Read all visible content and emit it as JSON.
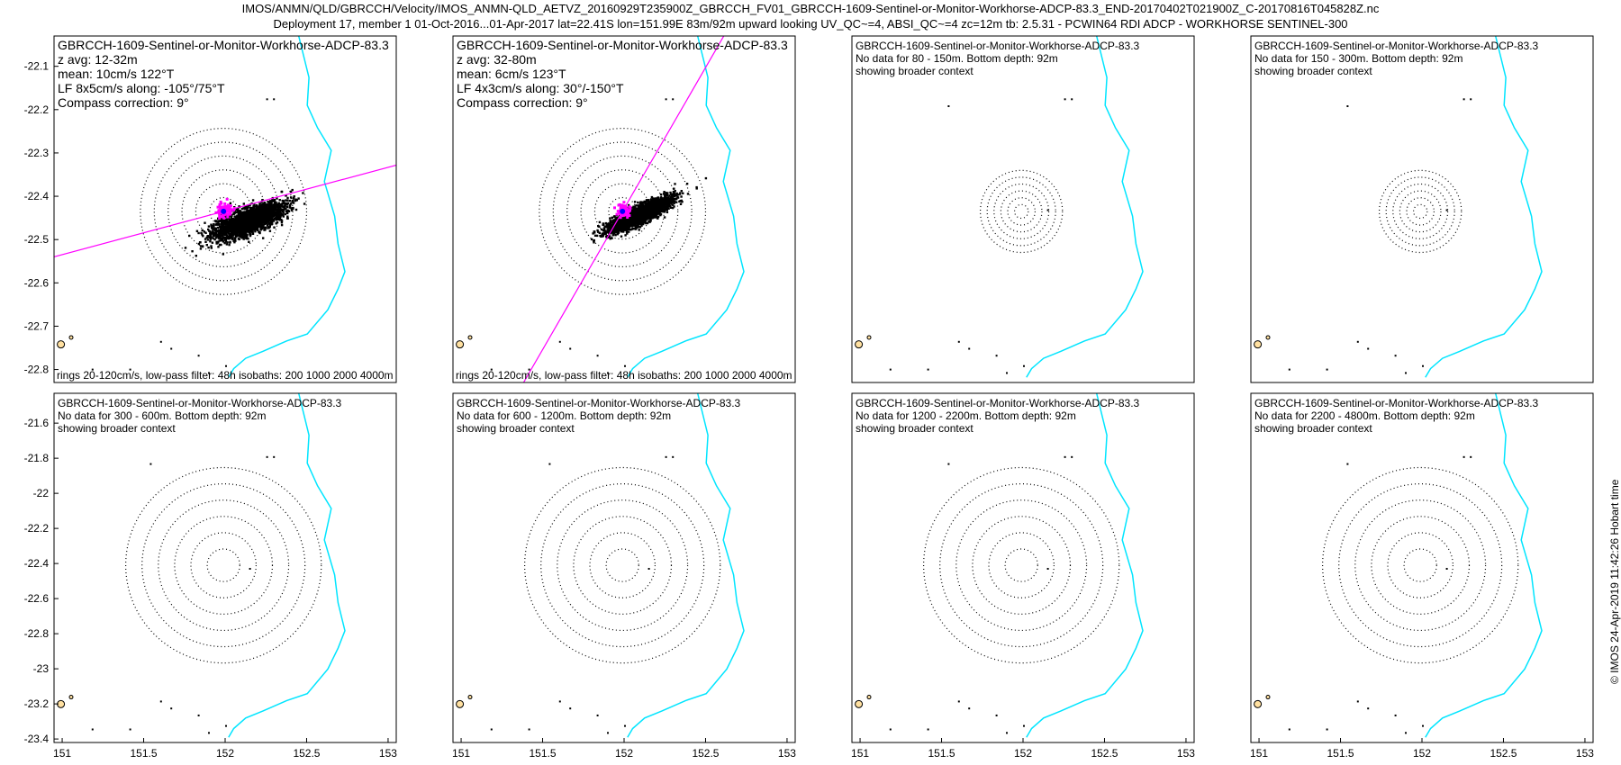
{
  "header": {
    "title_line1": "IMOS/ANMN/QLD/GBRCCH/Velocity/IMOS_ANMN-QLD_AETVZ_20160929T235900Z_GBRCCH_FV01_GBRCCH-1609-Sentinel-or-Monitor-Workhorse-ADCP-83.3_END-20170402T021900Z_C-20170816T045828Z.nc",
    "title_line2": "Deployment 17, member 1 01-Oct-2016...01-Apr-2017 lat=22.41S lon=151.99E 83m/92m upward looking UV_QC~=4, ABSI_QC~=4 zc=12m tb: 2.5.31 - PCWIN64 RDI ADCP - WORKHORSE SENTINEL-300"
  },
  "footer": {
    "credit": "© IMOS 24-Apr-2019 11:42:26 Hobart time"
  },
  "colors": {
    "scatter": "#000000",
    "scatter_recent": "#ff00ff",
    "mean_marker": "#0000ff",
    "major_axis": "#ff00ff",
    "coastline": "#00e5ff",
    "ring": "#000000"
  },
  "chart_data": [
    {
      "type": "scatter",
      "name": "top-1",
      "title": "GBRCCH-1609-Sentinel-or-Monitor-Workhorse-ADCP-83.3",
      "info": [
        "z avg: 12-32m",
        "mean: 10cm/s 122°T",
        "LF 8x5cm/s along: -105°/75°T",
        "Compass correction: 9°"
      ],
      "caption": "rings 20-120cm/s, low-pass filter: 48h isobaths: 200 1000 2000 4000m",
      "ylim": [
        -22.83,
        -22.03
      ],
      "yticks": [
        -22.1,
        -22.2,
        -22.3,
        -22.4,
        -22.5,
        -22.6,
        -22.7,
        -22.8
      ],
      "ytick_labels": [
        "-22.1",
        "-22.2",
        "-22.3",
        "-22.4",
        "-22.5",
        "-22.6",
        "-22.7",
        "-22.8"
      ],
      "xlim": [
        150.95,
        153.05
      ],
      "center": [
        151.99,
        -22.435
      ],
      "rings_cm_s": [
        20,
        40,
        60,
        80,
        100,
        120
      ],
      "ring_radius_deg": [
        0.085,
        0.17,
        0.255,
        0.34,
        0.425,
        0.51
      ],
      "major_axis_heading_deg": 75,
      "ellipse": {
        "cx": 152.14,
        "cy": -22.455,
        "a": 0.25,
        "b": 0.08,
        "tilt_deg": -22
      },
      "recent_cluster": {
        "cx": 151.99,
        "cy": -22.43,
        "r": 0.05
      }
    },
    {
      "type": "scatter",
      "name": "top-2",
      "title": "GBRCCH-1609-Sentinel-or-Monitor-Workhorse-ADCP-83.3",
      "info": [
        "z avg: 32-80m",
        "mean: 6cm/s 123°T",
        "LF 4x3cm/s along: 30°/-150°T",
        "Compass correction: 9°"
      ],
      "caption": "rings 20-120cm/s, low-pass filter: 48h isobaths: 200 1000 2000 4000m",
      "ylim": [
        -22.83,
        -22.03
      ],
      "yticks": [],
      "ytick_labels": [],
      "xlim": [
        150.95,
        153.05
      ],
      "center": [
        151.99,
        -22.435
      ],
      "rings_cm_s": [
        20,
        40,
        60,
        80,
        100,
        120
      ],
      "ring_radius_deg": [
        0.085,
        0.17,
        0.255,
        0.34,
        0.425,
        0.51
      ],
      "major_axis_heading_deg": 30,
      "ellipse": {
        "cx": 152.09,
        "cy": -22.44,
        "a": 0.24,
        "b": 0.055,
        "tilt_deg": -26
      },
      "recent_cluster": {
        "cx": 151.99,
        "cy": -22.43,
        "r": 0.04
      }
    },
    {
      "type": "scatter",
      "name": "top-3",
      "title": "GBRCCH-1609-Sentinel-or-Monitor-Workhorse-ADCP-83.3",
      "info": [
        "No data for 80 - 150m. Bottom depth: 92m",
        "showing broader context"
      ],
      "caption": "",
      "ylim": [
        -22.83,
        -22.03
      ],
      "yticks": [],
      "ytick_labels": [],
      "xlim": [
        150.95,
        153.05
      ],
      "center": [
        151.99,
        -22.435
      ],
      "rings_cm_s": [
        20,
        40,
        60,
        80,
        100,
        120
      ],
      "ring_radius_deg": [
        0.042,
        0.084,
        0.126,
        0.168,
        0.21,
        0.252
      ]
    },
    {
      "type": "scatter",
      "name": "top-4",
      "title": "GBRCCH-1609-Sentinel-or-Monitor-Workhorse-ADCP-83.3",
      "info": [
        "No data for 150 - 300m. Bottom depth: 92m",
        "showing broader context"
      ],
      "caption": "",
      "ylim": [
        -22.83,
        -22.03
      ],
      "yticks": [],
      "ytick_labels": [],
      "xlim": [
        150.95,
        153.05
      ],
      "center": [
        151.99,
        -22.435
      ],
      "rings_cm_s": [
        20,
        40,
        60,
        80,
        100,
        120
      ],
      "ring_radius_deg": [
        0.042,
        0.084,
        0.126,
        0.168,
        0.21,
        0.252
      ]
    },
    {
      "type": "scatter",
      "name": "bottom-1",
      "title": "GBRCCH-1609-Sentinel-or-Monitor-Workhorse-ADCP-83.3",
      "info": [
        "No data for 300 - 600m. Bottom depth: 92m",
        "showing broader context"
      ],
      "caption": "",
      "ylim": [
        -23.42,
        -21.43
      ],
      "yticks": [
        -21.6,
        -21.8,
        -22.0,
        -22.2,
        -22.4,
        -22.6,
        -22.8,
        -23.0,
        -23.2,
        -23.4
      ],
      "ytick_labels": [
        "-21.6",
        "-21.8",
        "-22",
        "-22.2",
        "-22.4",
        "-22.6",
        "-22.8",
        "-23",
        "-23.2",
        "-23.4"
      ],
      "xlim": [
        150.95,
        153.05
      ],
      "xticks": [
        151,
        151.5,
        152,
        152.5,
        153
      ],
      "xtick_labels": [
        "151",
        "151.5",
        "152",
        "152.5",
        "153"
      ],
      "center": [
        151.99,
        -22.41
      ],
      "rings_cm_s": [
        20,
        40,
        60,
        80,
        100,
        120
      ],
      "ring_radius_deg": [
        0.1,
        0.2,
        0.3,
        0.4,
        0.5,
        0.6
      ]
    },
    {
      "type": "scatter",
      "name": "bottom-2",
      "title": "GBRCCH-1609-Sentinel-or-Monitor-Workhorse-ADCP-83.3",
      "info": [
        "No data for 600 - 1200m. Bottom depth: 92m",
        "showing broader context"
      ],
      "caption": "",
      "ylim": [
        -23.42,
        -21.43
      ],
      "yticks": [],
      "ytick_labels": [],
      "xlim": [
        150.95,
        153.05
      ],
      "xticks": [
        151,
        151.5,
        152,
        152.5,
        153
      ],
      "xtick_labels": [
        "151",
        "151.5",
        "152",
        "152.5",
        "153"
      ],
      "center": [
        151.99,
        -22.41
      ],
      "rings_cm_s": [
        20,
        40,
        60,
        80,
        100,
        120
      ],
      "ring_radius_deg": [
        0.1,
        0.2,
        0.3,
        0.4,
        0.5,
        0.6
      ]
    },
    {
      "type": "scatter",
      "name": "bottom-3",
      "title": "GBRCCH-1609-Sentinel-or-Monitor-Workhorse-ADCP-83.3",
      "info": [
        "No data for 1200 - 2200m. Bottom depth: 92m",
        "showing broader context"
      ],
      "caption": "",
      "ylim": [
        -23.42,
        -21.43
      ],
      "yticks": [],
      "ytick_labels": [],
      "xlim": [
        150.95,
        153.05
      ],
      "xticks": [
        151,
        151.5,
        152,
        152.5,
        153
      ],
      "xtick_labels": [
        "151",
        "151.5",
        "152",
        "152.5",
        "153"
      ],
      "center": [
        151.99,
        -22.41
      ],
      "rings_cm_s": [
        20,
        40,
        60,
        80,
        100,
        120
      ],
      "ring_radius_deg": [
        0.1,
        0.2,
        0.3,
        0.4,
        0.5,
        0.6
      ]
    },
    {
      "type": "scatter",
      "name": "bottom-4",
      "title": "GBRCCH-1609-Sentinel-or-Monitor-Workhorse-ADCP-83.3",
      "info": [
        "No data for 2200 - 4800m. Bottom depth: 92m",
        "showing broader context"
      ],
      "caption": "",
      "ylim": [
        -23.42,
        -21.43
      ],
      "yticks": [],
      "ytick_labels": [],
      "xlim": [
        150.95,
        153.05
      ],
      "xticks": [
        151,
        151.5,
        152,
        152.5,
        153
      ],
      "xtick_labels": [
        "151",
        "151.5",
        "152",
        "152.5",
        "153"
      ],
      "center": [
        151.99,
        -22.41
      ],
      "rings_cm_s": [
        20,
        40,
        60,
        80,
        100,
        120
      ],
      "ring_radius_deg": [
        0.1,
        0.2,
        0.3,
        0.4,
        0.5,
        0.6
      ]
    }
  ]
}
